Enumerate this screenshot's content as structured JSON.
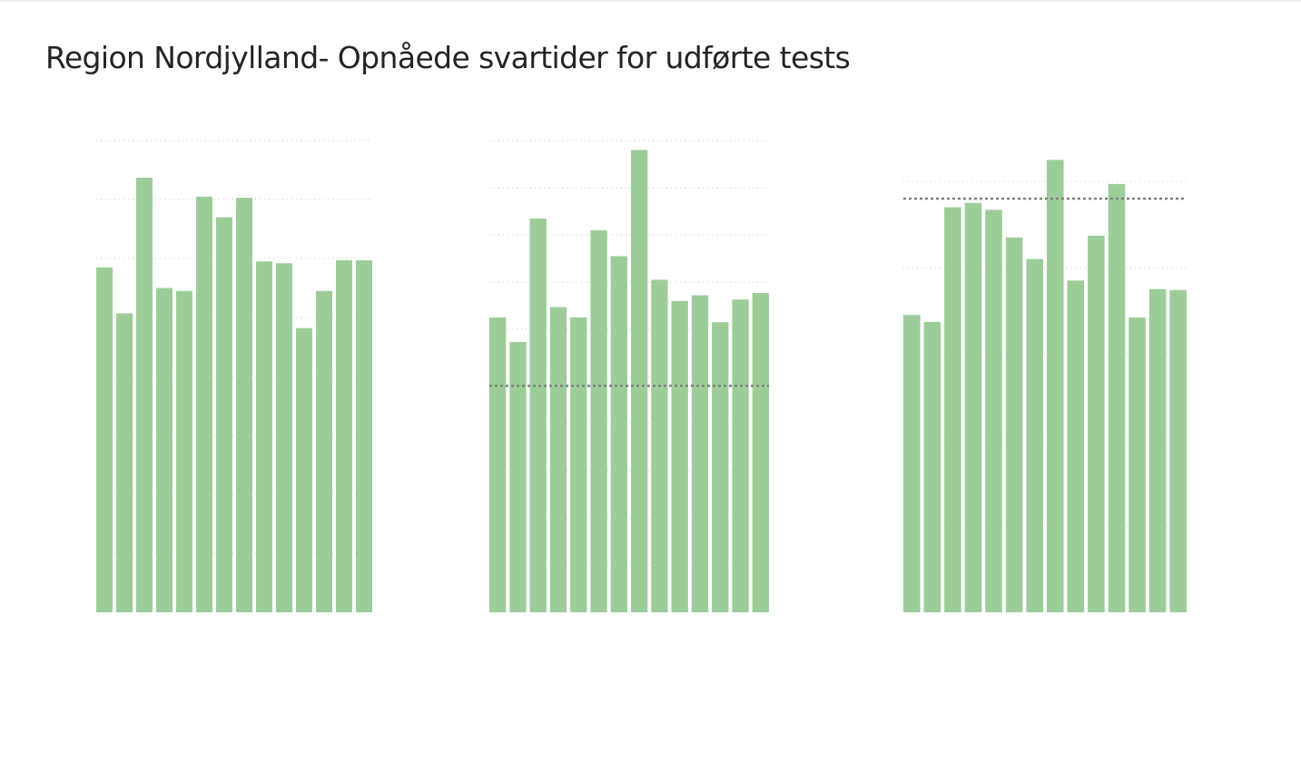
{
  "page": {
    "title": "Region Nordjylland- Opnåede svartider for udførte tests"
  },
  "colors": {
    "bar": "#9ccd98",
    "gridline": "#c8c8c8",
    "reference_line": "#808080",
    "title": "#252423"
  },
  "chart_data": [
    {
      "type": "bar",
      "title": "",
      "xlabel": "",
      "ylabel": "",
      "ylim": [
        0,
        8
      ],
      "grid": true,
      "reference_line": null,
      "values": [
        5.85,
        5.07,
        7.37,
        5.5,
        5.45,
        7.05,
        6.7,
        7.03,
        5.95,
        5.92,
        4.82,
        5.45,
        5.97,
        5.97
      ]
    },
    {
      "type": "bar",
      "title": "",
      "xlabel": "",
      "ylabel": "",
      "ylim": [
        0,
        10
      ],
      "grid": true,
      "reference_line": 4.8,
      "values": [
        6.25,
        5.73,
        8.35,
        6.47,
        6.25,
        8.1,
        7.55,
        9.8,
        7.05,
        6.6,
        6.72,
        6.15,
        6.63,
        6.77
      ]
    },
    {
      "type": "bar",
      "title": "",
      "xlabel": "",
      "ylabel": "",
      "ylim": [
        0,
        5
      ],
      "grid": true,
      "reference_line": 4.8,
      "values": [
        3.45,
        3.37,
        4.7,
        4.75,
        4.67,
        4.35,
        4.1,
        5.25,
        3.85,
        4.37,
        4.97,
        3.42,
        3.75,
        3.74
      ]
    }
  ]
}
